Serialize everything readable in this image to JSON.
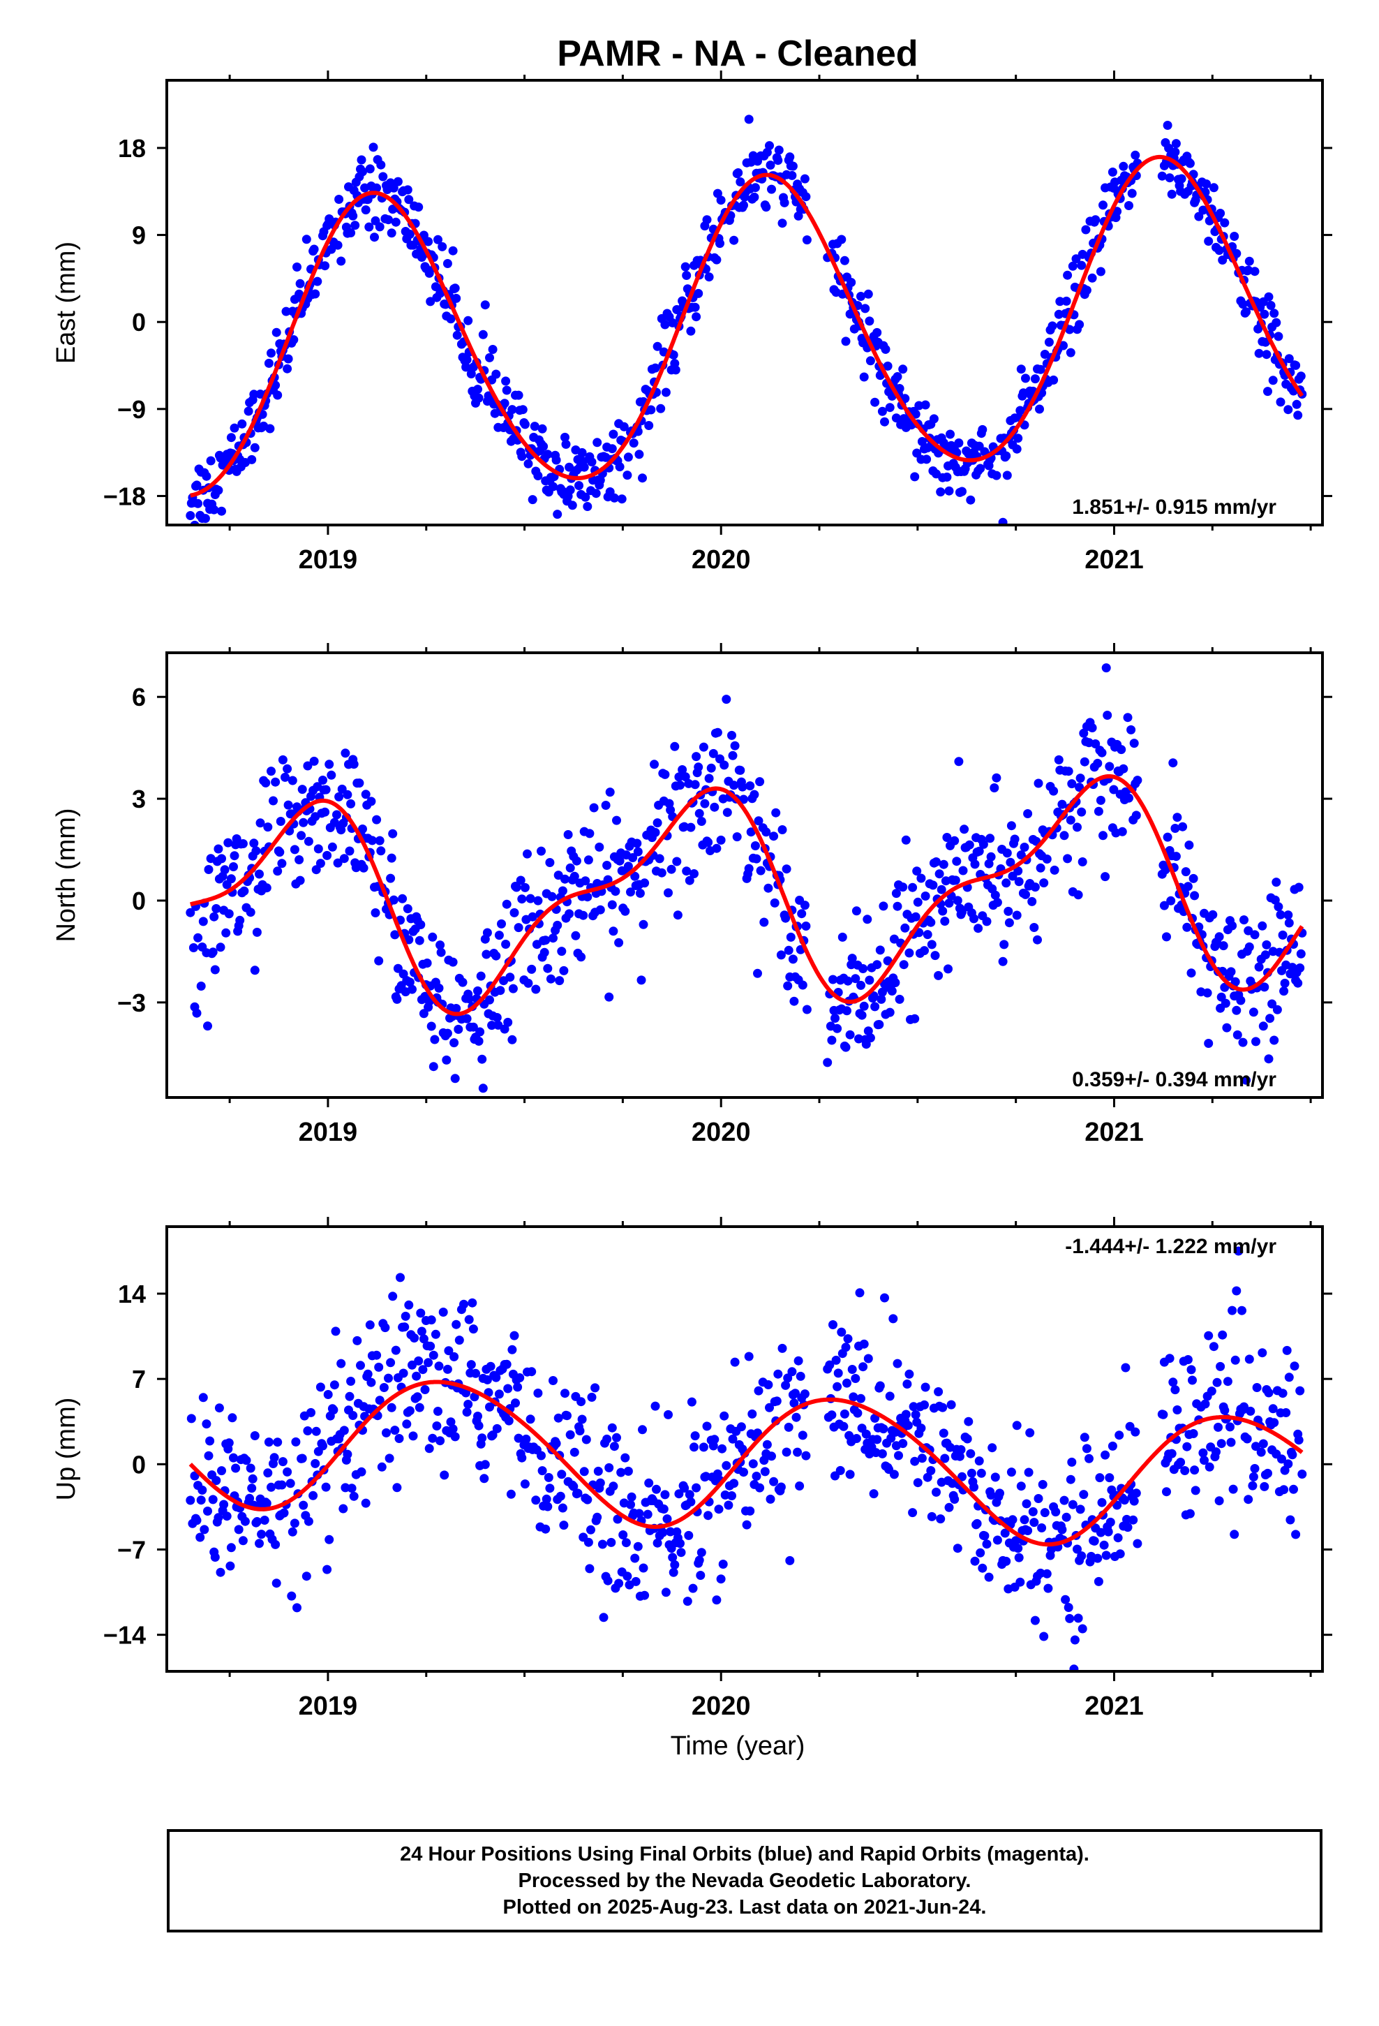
{
  "title": "PAMR  - NA - Cleaned",
  "colors": {
    "data_points": "#0000ff",
    "model_curve": "#ff0000",
    "frame": "#000000"
  },
  "x_axis": {
    "label": "Time (year)",
    "ticks": [
      "2019",
      "2020",
      "2021"
    ]
  },
  "footer": {
    "line1": "24 Hour Positions Using Final Orbits (blue) and Rapid Orbits (magenta).",
    "line2": "Processed by the Nevada Geodetic Laboratory.",
    "line3": "Plotted on 2025-Aug-23. Last data on 2021-Jun-24."
  },
  "chart_data": [
    {
      "type": "scatter",
      "component": "east",
      "ylabel": "East (mm)",
      "xlim": [
        2018.59,
        2021.53
      ],
      "ylim": [
        -21,
        25
      ],
      "yticks": [
        -18,
        -9,
        0,
        9,
        18
      ],
      "xticks": [
        2019,
        2020,
        2021
      ],
      "rate": "1.851+/- 0.915 mm/yr",
      "rate_position": "bottom-right",
      "data_start": 2018.65,
      "data_end": 2021.48,
      "model": {
        "offset": -1.3,
        "trend": 1.851,
        "annual_amplitude": 15.2,
        "annual_phase_rad": 0.8,
        "semiannual_amplitude": 1.2,
        "semiannual_phase_rad": 0.5
      },
      "scatter_noise": 2.0,
      "gaps": [
        [
          2020.22,
          2020.27
        ],
        [
          2021.06,
          2021.12
        ]
      ]
    },
    {
      "type": "scatter",
      "component": "north",
      "ylabel": "North (mm)",
      "xlim": [
        2018.59,
        2021.53
      ],
      "ylim": [
        -5.8,
        7.3
      ],
      "yticks": [
        -3,
        0,
        3,
        6
      ],
      "xticks": [
        2019,
        2020,
        2021
      ],
      "rate": "0.359+/- 0.394 mm/yr",
      "rate_position": "bottom-right",
      "data_start": 2018.65,
      "data_end": 2021.48,
      "model": {
        "offset": 0.2,
        "trend": 0.359,
        "annual_amplitude": 2.6,
        "annual_phase_rad": 2.2,
        "semiannual_amplitude": 1.1,
        "semiannual_phase_rad": 1.1
      },
      "scatter_noise": 1.1,
      "gaps": [
        [
          2020.22,
          2020.27
        ],
        [
          2021.06,
          2021.12
        ]
      ]
    },
    {
      "type": "scatter",
      "component": "up",
      "ylabel": "Up (mm)",
      "xlim": [
        2018.59,
        2021.53
      ],
      "ylim": [
        -17,
        19.5
      ],
      "yticks": [
        -14,
        -7,
        0,
        7,
        14
      ],
      "xticks": [
        2019,
        2020,
        2021
      ],
      "rate": "-1.444+/- 1.222 mm/yr",
      "rate_position": "top-right",
      "data_start": 2018.65,
      "data_end": 2021.48,
      "model": {
        "offset": 0.5,
        "trend": -1.444,
        "annual_amplitude": 5.5,
        "annual_phase_rad": 5.9,
        "semiannual_amplitude": 0.5,
        "semiannual_phase_rad": 0.0
      },
      "scatter_noise": 3.6,
      "gaps": [
        [
          2020.22,
          2020.27
        ],
        [
          2021.06,
          2021.12
        ]
      ]
    }
  ]
}
